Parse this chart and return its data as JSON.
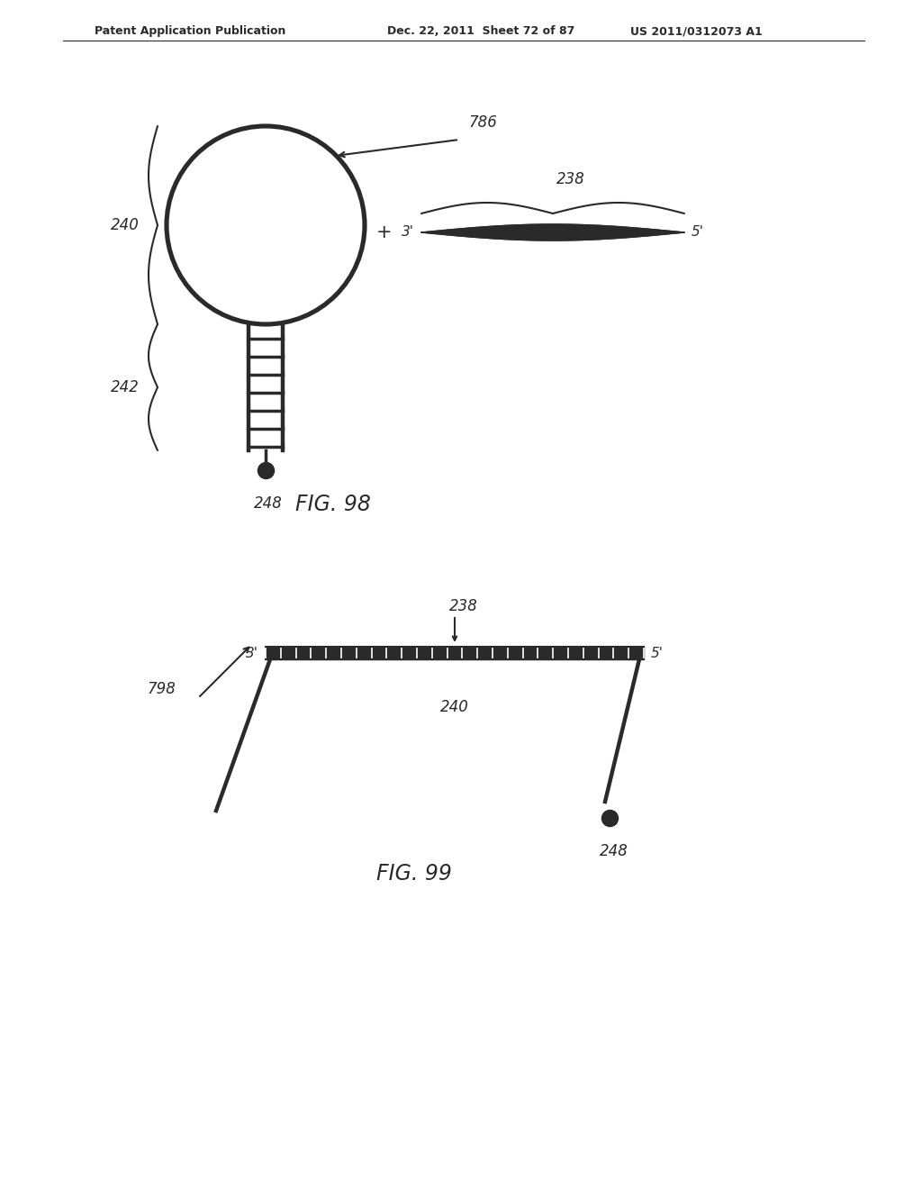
{
  "bg_color": "#ffffff",
  "line_color": "#2a2a2a",
  "header_left": "Patent Application Publication",
  "header_mid": "Dec. 22, 2011  Sheet 72 of 87",
  "header_right": "US 2011/0312073 A1",
  "fig98_title": "FIG. 98",
  "fig99_title": "FIG. 99"
}
